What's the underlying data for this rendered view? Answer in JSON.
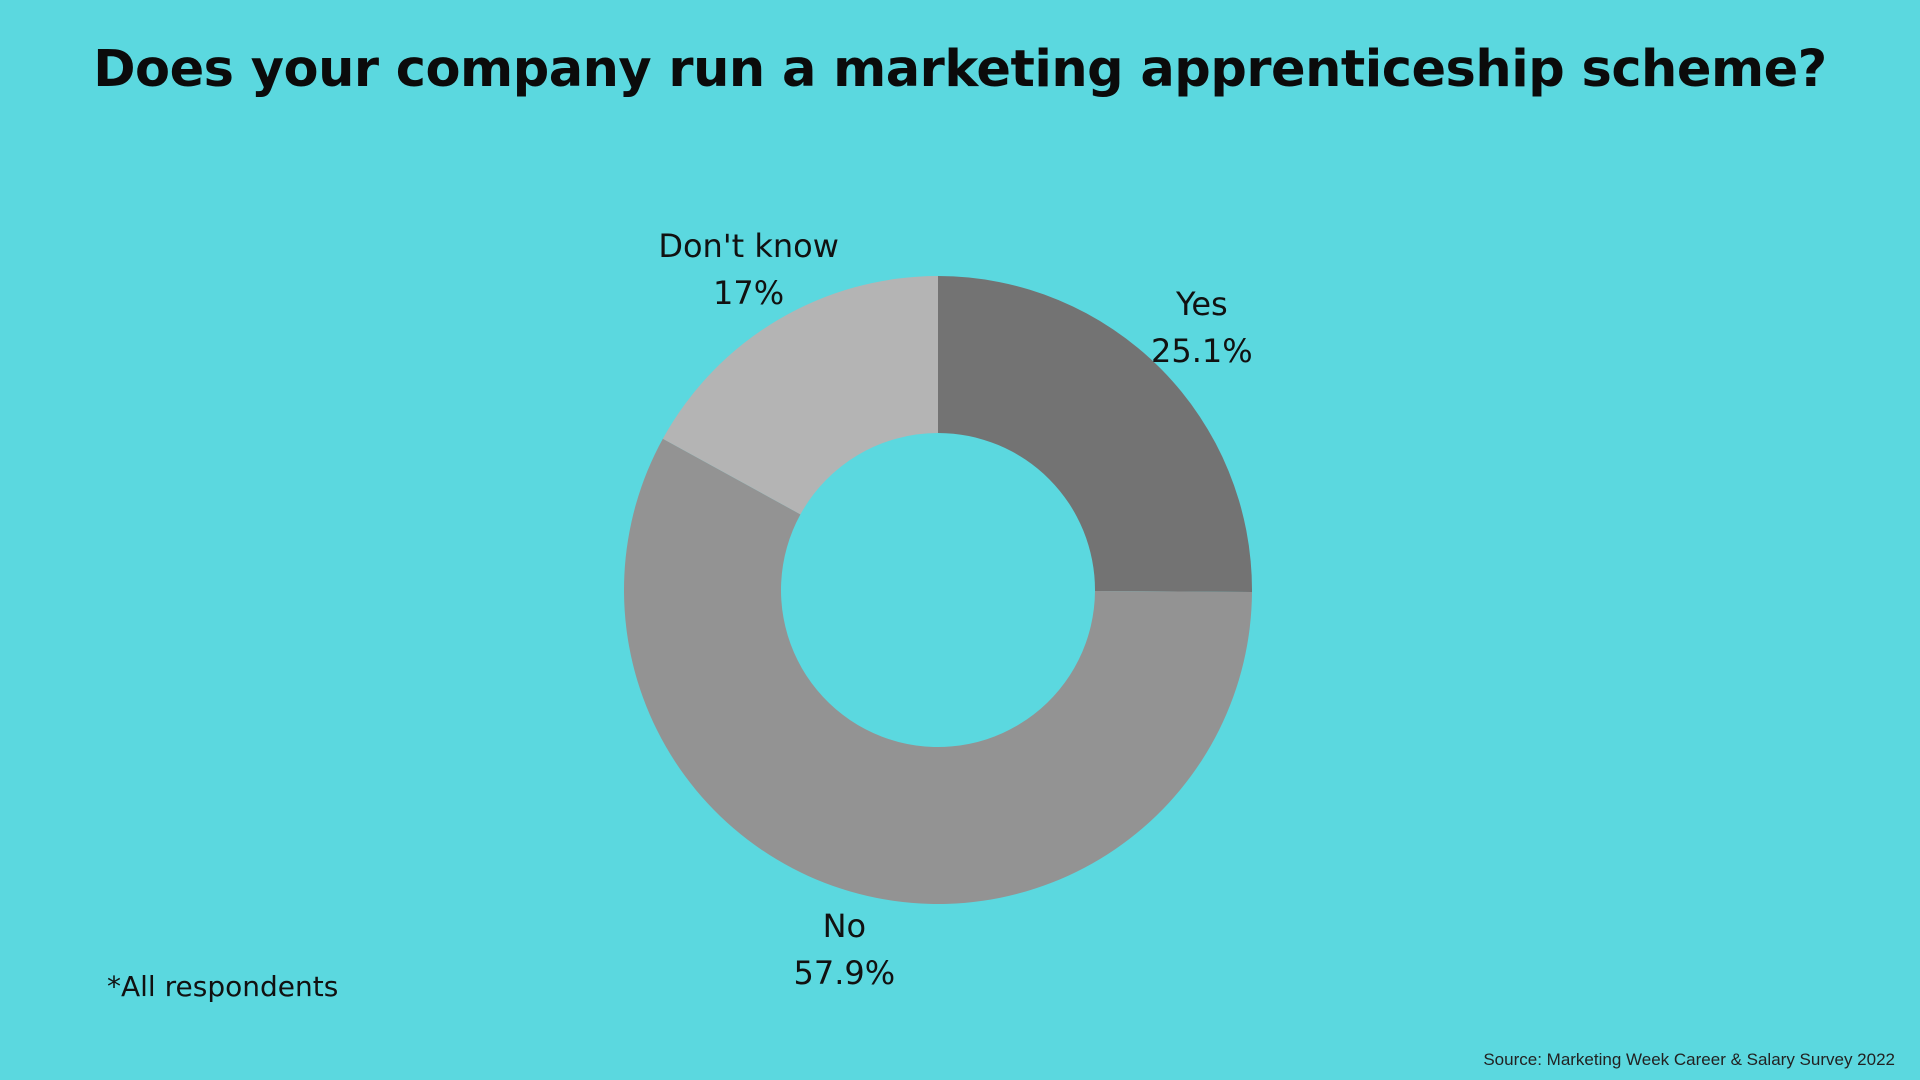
{
  "colors": {
    "background": "#5BD8DF",
    "text": "#111111"
  },
  "chart_data": {
    "type": "pie",
    "variant": "donut",
    "title": "Does your company run a marketing apprenticeship scheme?",
    "categories": [
      "Yes",
      "No",
      "Don't know"
    ],
    "values": [
      25.1,
      57.9,
      17
    ],
    "value_labels": [
      "25.1%",
      "57.9%",
      "17%"
    ],
    "colors": [
      "#737373",
      "#939393",
      "#B4B4B4"
    ],
    "start_angle": "12 o'clock",
    "direction": "clockwise",
    "legend": "none",
    "annotations": [
      "*All respondents"
    ],
    "source": "Source: Marketing Week Career & Salary Survey 2022"
  }
}
